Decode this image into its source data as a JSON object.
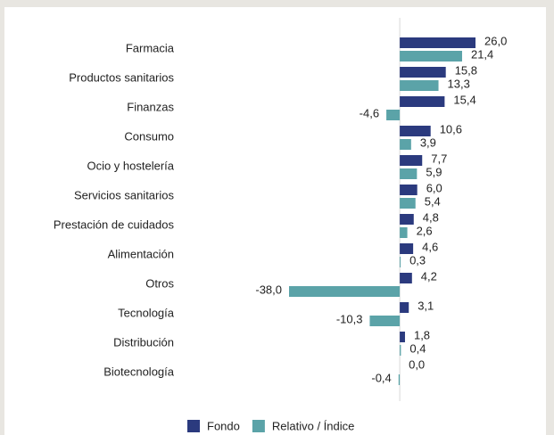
{
  "chart_data": {
    "type": "hbar",
    "categories": [
      "Farmacia",
      "Productos sanitarios",
      "Finanzas",
      "Consumo",
      "Ocio y hostelería",
      "Servicios sanitarios",
      "Prestación de cuidados",
      "Alimentación",
      "Otros",
      "Tecnología",
      "Distribución",
      "Biotecnología"
    ],
    "series": [
      {
        "name": "Fondo",
        "color": "#2b3a7e",
        "values": [
          26.0,
          15.8,
          15.4,
          10.6,
          7.7,
          6.0,
          4.8,
          4.6,
          4.2,
          3.1,
          1.8,
          0.0
        ],
        "value_labels": [
          "26,0",
          "15,8",
          "15,4",
          "10,6",
          "7,7",
          "6,0",
          "4,8",
          "4,6",
          "4,2",
          "3,1",
          "1,8",
          "0,0"
        ]
      },
      {
        "name": "Relativo / Índice",
        "color": "#5ba3a8",
        "values": [
          21.4,
          13.3,
          -4.6,
          3.9,
          5.9,
          5.4,
          2.6,
          0.3,
          -38.0,
          -10.3,
          0.4,
          -0.4
        ],
        "value_labels": [
          "21,4",
          "13,3",
          "-4,6",
          "3,9",
          "5,9",
          "5,4",
          "2,6",
          "0,3",
          "-38,0",
          "-10,3",
          "0,4",
          "-0,4"
        ]
      }
    ]
  }
}
